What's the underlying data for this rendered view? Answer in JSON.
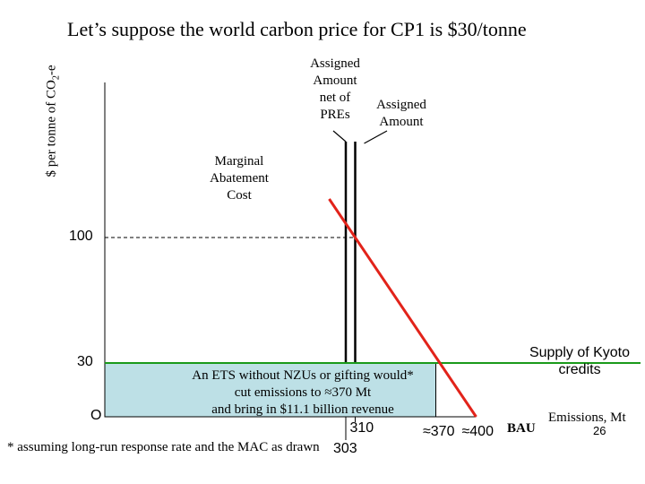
{
  "title": "Let’s suppose the world carbon price for CP1 is $30/tonne",
  "y_axis": {
    "label_prefix": "$ per tonne of CO",
    "label_sub": "2",
    "label_suffix": "-e"
  },
  "labels": {
    "assigned_net": [
      "Assigned",
      "Amount",
      "net of",
      "PREs"
    ],
    "assigned": [
      "Assigned",
      "Amount"
    ],
    "mac": [
      "Marginal",
      "Abatement",
      "Cost"
    ],
    "supply": [
      "Supply of Kyoto",
      "credits"
    ],
    "emissions": "Emissions, Mt",
    "origin": "O",
    "bau": "BAU",
    "slide_number": "26",
    "footnote": "*  assuming long-run response rate and the MAC as drawn"
  },
  "revenue_box": [
    "An ETS without NZUs or gifting would*",
    "cut emissions to ≈370 Mt",
    "and bring in $11.1 billion revenue"
  ],
  "chart_data": {
    "type": "line",
    "title": "Let’s suppose the world carbon price for CP1 is $30/tonne",
    "ylabel": "$ per tonne of CO2-e",
    "xlabel": "Emissions, Mt",
    "y_ticks": [
      {
        "value": 100,
        "label": "100"
      },
      {
        "value": 30,
        "label": "30"
      },
      {
        "value": 0,
        "label": "O"
      }
    ],
    "x_ticks": [
      {
        "value": 303,
        "label": "303"
      },
      {
        "value": 310,
        "label": "310"
      },
      {
        "value": 370,
        "label": "≈370"
      },
      {
        "value": 400,
        "label": "≈400"
      }
    ],
    "series": [
      {
        "name": "Marginal Abatement Cost",
        "color": "#e2231a",
        "points": [
          [
            310,
            100
          ],
          [
            370,
            30
          ],
          [
            400,
            0
          ]
        ]
      },
      {
        "name": "Supply of Kyoto credits",
        "color": "#1a9a1a",
        "points": [
          [
            0,
            30
          ],
          [
            400,
            30
          ]
        ]
      }
    ],
    "vertical_lines": [
      {
        "name": "Assigned Amount net of PREs",
        "x": 303
      },
      {
        "name": "Assigned Amount",
        "x": 310
      }
    ],
    "shaded_region": {
      "x": [
        0,
        370
      ],
      "y": [
        0,
        30
      ],
      "color": "#bde0e6",
      "meaning": "revenue"
    },
    "colors": {
      "mac": "#e2231a",
      "supply": "#1a9a1a",
      "revenue_fill": "#bde0e6"
    }
  }
}
